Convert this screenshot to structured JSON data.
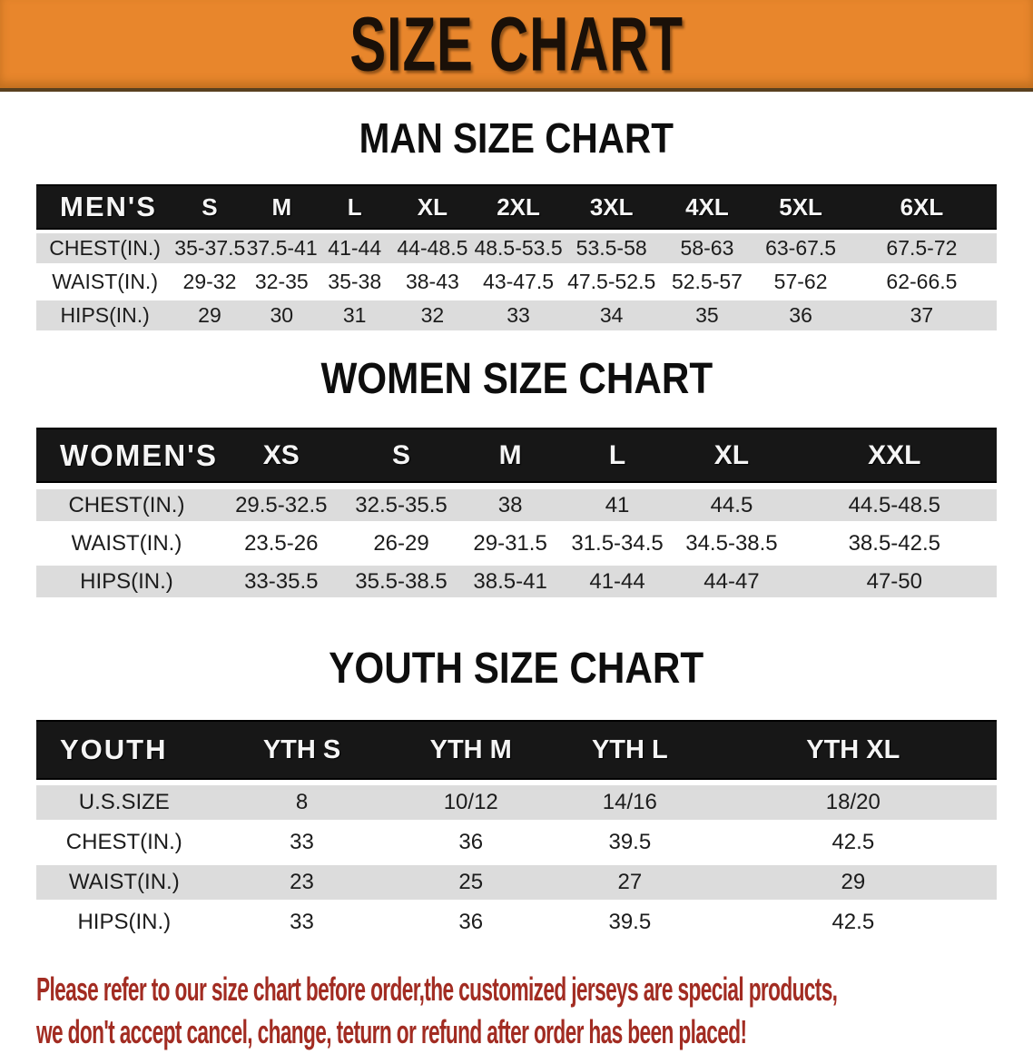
{
  "banner": {
    "title": "SIZE CHART"
  },
  "colors": {
    "banner_bg": "#E8862C",
    "banner_text": "#1A1008",
    "bar_bg": "#171717",
    "bar_text": "#F5F5F5",
    "band_bg": "#DCDCDC",
    "heading_color": "#0E0E0E",
    "disclaimer_color": "#A22C22"
  },
  "sections": [
    {
      "id": "men",
      "heading": "MAN SIZE CHART",
      "label": "MEN'S",
      "columns": [
        "S",
        "M",
        "L",
        "XL",
        "2XL",
        "3XL",
        "4XL",
        "5XL",
        "6XL"
      ],
      "rows": [
        {
          "label": "CHEST(IN.)",
          "values": [
            "35-37.5",
            "37.5-41",
            "41-44",
            "44-48.5",
            "48.5-53.5",
            "53.5-58",
            "58-63",
            "63-67.5",
            "67.5-72"
          ]
        },
        {
          "label": "WAIST(IN.)",
          "values": [
            "29-32",
            "32-35",
            "35-38",
            "38-43",
            "43-47.5",
            "47.5-52.5",
            "52.5-57",
            "57-62",
            "62-66.5"
          ]
        },
        {
          "label": "HIPS(IN.)",
          "values": [
            "29",
            "30",
            "31",
            "32",
            "33",
            "34",
            "35",
            "36",
            "37"
          ]
        }
      ]
    },
    {
      "id": "women",
      "heading": "WOMEN SIZE CHART",
      "label": "WOMEN'S",
      "columns": [
        "XS",
        "S",
        "M",
        "L",
        "XL",
        "XXL"
      ],
      "rows": [
        {
          "label": "CHEST(IN.)",
          "values": [
            "29.5-32.5",
            "32.5-35.5",
            "38",
            "41",
            "44.5",
            "44.5-48.5"
          ]
        },
        {
          "label": "WAIST(IN.)",
          "values": [
            "23.5-26",
            "26-29",
            "29-31.5",
            "31.5-34.5",
            "34.5-38.5",
            "38.5-42.5"
          ]
        },
        {
          "label": "HIPS(IN.)",
          "values": [
            "33-35.5",
            "35.5-38.5",
            "38.5-41",
            "41-44",
            "44-47",
            "47-50"
          ]
        }
      ]
    },
    {
      "id": "youth",
      "heading": "YOUTH SIZE CHART",
      "label": "YOUTH",
      "columns": [
        "YTH S",
        "YTH M",
        "YTH L",
        "YTH XL"
      ],
      "rows": [
        {
          "label": "U.S.SIZE",
          "values": [
            "8",
            "10/12",
            "14/16",
            "18/20"
          ]
        },
        {
          "label": "CHEST(IN.)",
          "values": [
            "33",
            "36",
            "39.5",
            "42.5"
          ]
        },
        {
          "label": "WAIST(IN.)",
          "values": [
            "23",
            "25",
            "27",
            "29"
          ]
        },
        {
          "label": "HIPS(IN.)",
          "values": [
            "33",
            "36",
            "39.5",
            "42.5"
          ]
        }
      ]
    }
  ],
  "disclaimer": {
    "line1": "Please refer to our size chart before order,the customized jerseys are special products,",
    "line2": "we don't accept cancel, change, teturn or refund after order has been placed!"
  }
}
